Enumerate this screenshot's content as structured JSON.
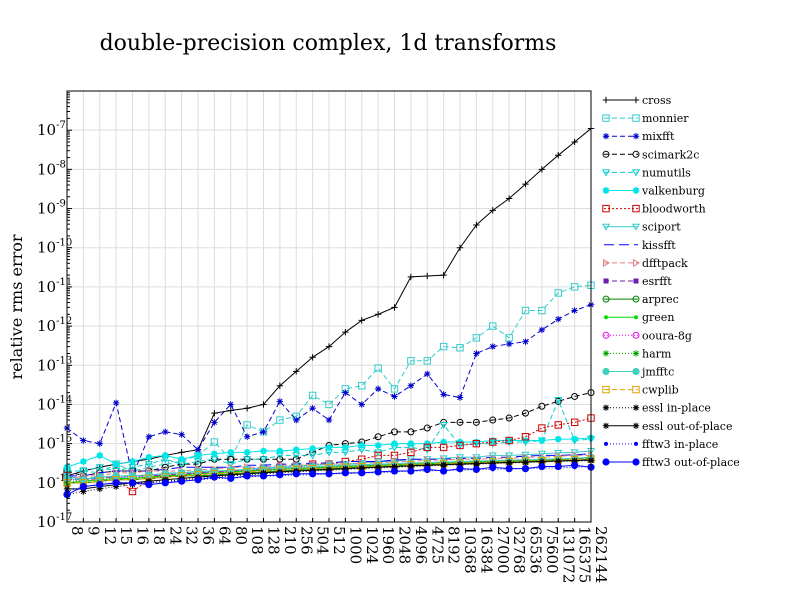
{
  "chart_data": {
    "type": "line",
    "title": "double-precision complex, 1d transforms",
    "ylabel": "relative rms error",
    "yscale": "log",
    "ylim": [
      1e-17,
      1e-06
    ],
    "y_ticks": [
      {
        "value": 1e-17,
        "base": "10",
        "exp": "-17"
      },
      {
        "value": 1e-16,
        "base": "10",
        "exp": "-16"
      },
      {
        "value": 1e-15,
        "base": "10",
        "exp": "-15"
      },
      {
        "value": 1e-14,
        "base": "10",
        "exp": "-14"
      },
      {
        "value": 1e-13,
        "base": "10",
        "exp": "-13"
      },
      {
        "value": 1e-12,
        "base": "10",
        "exp": "-12"
      },
      {
        "value": 1e-11,
        "base": "10",
        "exp": "-11"
      },
      {
        "value": 1e-10,
        "base": "10",
        "exp": "-10"
      },
      {
        "value": 1e-09,
        "base": "10",
        "exp": "-9"
      },
      {
        "value": 1e-08,
        "base": "10",
        "exp": "-8"
      },
      {
        "value": 1e-07,
        "base": "10",
        "exp": "-7"
      }
    ],
    "categories": [
      "8",
      "9",
      "12",
      "15",
      "16",
      "18",
      "24",
      "32",
      "36",
      "64",
      "80",
      "108",
      "128",
      "210",
      "256",
      "504",
      "512",
      "1000",
      "1024",
      "1960",
      "2048",
      "4096",
      "4725",
      "8192",
      "10368",
      "16384",
      "27000",
      "32768",
      "65536",
      "75600",
      "131072",
      "165375",
      "262144"
    ],
    "grid": true,
    "legend_position": "right",
    "series": [
      {
        "name": "cross",
        "color": "#000000",
        "dash": "",
        "marker": "plus",
        "values": [
          1.5e-16,
          2e-16,
          2.5e-16,
          3e-16,
          3.5e-16,
          4e-16,
          5e-16,
          6e-16,
          7e-16,
          6e-15,
          7e-15,
          8e-15,
          1e-14,
          3e-14,
          7e-14,
          1.6e-13,
          3e-13,
          7e-13,
          1.4e-12,
          2e-12,
          3e-12,
          1.8e-11,
          1.9e-11,
          2e-11,
          1e-10,
          3.8e-10,
          9e-10,
          1.8e-09,
          4.2e-09,
          1e-08,
          2.3e-08,
          5e-08,
          1.1e-07
        ]
      },
      {
        "name": "monnier",
        "color": "#33cccc",
        "dash": "5,3",
        "marker": "square",
        "values": [
          2e-16,
          2e-16,
          1.8e-16,
          3e-16,
          2e-16,
          2.5e-16,
          3e-16,
          3.5e-16,
          5e-16,
          1.1e-15,
          4e-16,
          3e-15,
          2e-15,
          4e-15,
          5e-15,
          1.7e-14,
          1e-14,
          2.5e-14,
          3e-14,
          8.5e-14,
          2.5e-14,
          1.3e-13,
          1.3e-13,
          3e-13,
          2.8e-13,
          5e-13,
          1e-12,
          5e-13,
          2.5e-12,
          2.5e-12,
          7e-12,
          1e-11,
          1.1e-11
        ]
      },
      {
        "name": "mixfft",
        "color": "#0000cc",
        "dash": "5,3",
        "marker": "asterisk",
        "values": [
          2.5e-15,
          1.2e-15,
          1e-15,
          1.1e-14,
          1.5e-16,
          1.5e-15,
          2e-15,
          1.7e-15,
          7e-16,
          3.5e-15,
          1e-14,
          1.5e-15,
          2e-15,
          1.2e-14,
          4e-15,
          8e-15,
          4e-15,
          2e-14,
          1e-14,
          2.5e-14,
          1.6e-14,
          3e-14,
          6e-14,
          1.8e-14,
          1.5e-14,
          2e-13,
          3e-13,
          3.5e-13,
          4e-13,
          8e-13,
          1.5e-12,
          2.5e-12,
          3.5e-12
        ]
      },
      {
        "name": "scimark2c",
        "color": "#000000",
        "dash": "5,3",
        "marker": "circle",
        "values": [
          2e-16,
          1.5e-16,
          1.8e-16,
          2e-16,
          2e-16,
          2e-16,
          2.5e-16,
          3e-16,
          3e-16,
          4e-16,
          4e-16,
          4e-16,
          4e-16,
          4e-16,
          4e-16,
          6e-16,
          9e-16,
          1e-15,
          1.1e-15,
          1.5e-15,
          2e-15,
          2e-15,
          2.5e-15,
          3.5e-15,
          3.5e-15,
          3.5e-15,
          4e-15,
          4.5e-15,
          6e-15,
          9e-15,
          1.2e-14,
          1.6e-14,
          2e-14
        ]
      },
      {
        "name": "numutils",
        "color": "#00cccc",
        "dash": "5,3",
        "marker": "tri-down",
        "values": [
          2e-16,
          2e-16,
          2.5e-16,
          2e-16,
          2.5e-16,
          3e-16,
          4e-16,
          3e-16,
          3.5e-16,
          4e-16,
          3e-16,
          4e-16,
          4e-16,
          5e-16,
          5e-16,
          5e-16,
          6e-16,
          6e-16,
          7e-16,
          6e-16,
          8e-16,
          8e-16,
          7e-16,
          3e-15,
          9e-16,
          1e-15,
          1e-15,
          1.1e-15,
          1.1e-15,
          1.2e-15,
          1.3e-14,
          1.2e-15,
          1.3e-15
        ]
      },
      {
        "name": "valkenburg",
        "color": "#00e5e5",
        "dash": "",
        "marker": "star",
        "values": [
          2.5e-16,
          3.5e-16,
          5e-16,
          3e-16,
          3.5e-16,
          4.5e-16,
          5e-16,
          4e-16,
          5e-16,
          5.5e-16,
          6e-16,
          6e-16,
          6.5e-16,
          6.5e-16,
          7e-16,
          7.5e-16,
          8e-16,
          8e-16,
          9e-16,
          9e-16,
          1e-15,
          1e-15,
          1e-15,
          1.1e-15,
          1.1e-15,
          1.1e-15,
          1.2e-15,
          1.2e-15,
          1.2e-15,
          1.2e-15,
          1.3e-15,
          1.3e-15,
          1.4e-15
        ]
      },
      {
        "name": "bloodworth",
        "color": "#cc0000",
        "dash": "2,2",
        "marker": "square",
        "values": [
          1.5e-16,
          1.2e-16,
          1.5e-16,
          1.3e-16,
          6e-17,
          1.2e-16,
          1.5e-16,
          1.5e-16,
          1.8e-16,
          2e-16,
          2e-16,
          2e-16,
          2.2e-16,
          2.5e-16,
          2.5e-16,
          3e-16,
          3e-16,
          3.5e-16,
          4e-16,
          5e-16,
          5e-16,
          6e-16,
          8e-16,
          8e-16,
          9e-16,
          1e-15,
          1.1e-15,
          1.2e-15,
          1.5e-15,
          2.5e-15,
          3e-15,
          3.5e-15,
          4.5e-15
        ]
      },
      {
        "name": "sciport",
        "color": "#33cccc",
        "dash": "",
        "marker": "tri-down",
        "values": [
          1.5e-16,
          1.2e-16,
          1.5e-16,
          1.3e-16,
          1.5e-16,
          1.5e-16,
          1.8e-16,
          1.8e-16,
          2e-16,
          2e-16,
          2e-16,
          2.2e-16,
          2.5e-16,
          2.5e-16,
          2.8e-16,
          2.8e-16,
          3e-16,
          3e-16,
          3.2e-16,
          3.5e-16,
          3.5e-16,
          4e-16,
          4e-16,
          4.2e-16,
          4.5e-16,
          4.5e-16,
          5e-16,
          5e-16,
          5.2e-16,
          5.5e-16,
          5.8e-16,
          6e-16,
          6.5e-16
        ]
      },
      {
        "name": "kissfft",
        "color": "#0000ff",
        "dash": "10,5",
        "marker": "none",
        "values": [
          1.5e-16,
          1.5e-16,
          1.8e-16,
          2e-16,
          2e-16,
          2e-16,
          2.2e-16,
          2.5e-16,
          2.5e-16,
          2.5e-16,
          2.5e-16,
          2.8e-16,
          2.8e-16,
          3e-16,
          3e-16,
          3.2e-16,
          3.2e-16,
          3.5e-16,
          3.5e-16,
          3.5e-16,
          3.8e-16,
          4e-16,
          4e-16,
          4e-16,
          4.2e-16,
          4.2e-16,
          4.5e-16,
          4.5e-16,
          4.8e-16,
          5e-16,
          5e-16,
          5.2e-16,
          5.5e-16
        ]
      },
      {
        "name": "dfftpack",
        "color": "#e08080",
        "dash": "5,3",
        "marker": "tri-right",
        "values": [
          1.2e-16,
          1.5e-16,
          1.5e-16,
          1.8e-16,
          1.8e-16,
          2e-16,
          2e-16,
          2e-16,
          2.2e-16,
          2.2e-16,
          2.5e-16,
          2.5e-16,
          2.5e-16,
          2.8e-16,
          2.8e-16,
          3e-16,
          3e-16,
          3e-16,
          3.2e-16,
          3.2e-16,
          3.5e-16,
          3.5e-16,
          3.8e-16,
          3.8e-16,
          4e-16,
          4e-16,
          4.2e-16,
          4.2e-16,
          4.5e-16,
          4.5e-16,
          4.8e-16,
          5e-16,
          5e-16
        ]
      },
      {
        "name": "esrfft",
        "color": "#6a1fb0",
        "dash": "5,3",
        "marker": "filled-square",
        "values": [
          1.2e-16,
          1.2e-16,
          1.3e-16,
          1.5e-16,
          1.5e-16,
          1.5e-16,
          1.6e-16,
          1.7e-16,
          1.8e-16,
          1.9e-16,
          2e-16,
          2e-16,
          2.1e-16,
          2.2e-16,
          2.3e-16,
          2.4e-16,
          2.5e-16,
          2.6e-16,
          2.7e-16,
          2.8e-16,
          2.9e-16,
          3e-16,
          3.1e-16,
          3.2e-16,
          3.3e-16,
          3.4e-16,
          3.5e-16,
          3.6e-16,
          3.7e-16,
          3.8e-16,
          3.9e-16,
          4e-16,
          4.2e-16
        ]
      },
      {
        "name": "arprec",
        "color": "#008000",
        "dash": "",
        "marker": "circle",
        "values": [
          1e-16,
          1e-16,
          1.1e-16,
          1.2e-16,
          1.2e-16,
          1.3e-16,
          1.4e-16,
          1.5e-16,
          1.5e-16,
          1.6e-16,
          1.7e-16,
          1.8e-16,
          1.9e-16,
          2e-16,
          2.1e-16,
          2.2e-16,
          2.3e-16,
          2.4e-16,
          2.5e-16,
          2.6e-16,
          2.7e-16,
          2.8e-16,
          2.9e-16,
          3e-16,
          3.1e-16,
          3.2e-16,
          3.3e-16,
          3.4e-16,
          3.5e-16,
          3.6e-16,
          3.7e-16,
          3.8e-16,
          4e-16
        ]
      },
      {
        "name": "green",
        "color": "#00dd00",
        "dash": "",
        "marker": "filled-dot",
        "values": [
          1e-16,
          1.1e-16,
          1.2e-16,
          1.3e-16,
          1.3e-16,
          1.4e-16,
          1.5e-16,
          1.6e-16,
          1.7e-16,
          1.8e-16,
          1.9e-16,
          2e-16,
          2.1e-16,
          2.2e-16,
          2.3e-16,
          2.4e-16,
          2.5e-16,
          2.6e-16,
          2.7e-16,
          2.8e-16,
          2.9e-16,
          3e-16,
          3.1e-16,
          3.2e-16,
          3.3e-16,
          3.4e-16,
          3.5e-16,
          3.6e-16,
          3.7e-16,
          3.8e-16,
          4e-16,
          4.2e-16,
          4.5e-16
        ]
      },
      {
        "name": "ooura-8g",
        "color": "#ee00ee",
        "dash": "1,2",
        "marker": "circle",
        "values": [
          1.2e-16,
          1.2e-16,
          1.3e-16,
          1.4e-16,
          1.4e-16,
          1.5e-16,
          1.6e-16,
          1.7e-16,
          1.8e-16,
          1.9e-16,
          2e-16,
          2.1e-16,
          2.2e-16,
          2.3e-16,
          2.4e-16,
          2.5e-16,
          2.6e-16,
          2.7e-16,
          2.8e-16,
          2.9e-16,
          3e-16,
          3.1e-16,
          3.2e-16,
          3.3e-16,
          3.4e-16,
          3.5e-16,
          3.6e-16,
          3.7e-16,
          3.8e-16,
          3.9e-16,
          4e-16,
          4.1e-16,
          4.3e-16
        ]
      },
      {
        "name": "harm",
        "color": "#00aa00",
        "dash": "1,2",
        "marker": "asterisk",
        "values": [
          1.1e-16,
          1.1e-16,
          1.2e-16,
          1.3e-16,
          1.3e-16,
          1.4e-16,
          1.5e-16,
          1.6e-16,
          1.7e-16,
          1.8e-16,
          1.9e-16,
          2e-16,
          2.1e-16,
          2.2e-16,
          2.3e-16,
          2.4e-16,
          2.5e-16,
          2.6e-16,
          2.7e-16,
          2.8e-16,
          2.9e-16,
          3e-16,
          3.1e-16,
          3.2e-16,
          3.3e-16,
          3.4e-16,
          3.5e-16,
          3.6e-16,
          3.7e-16,
          3.8e-16,
          3.9e-16,
          4e-16,
          4.2e-16
        ]
      },
      {
        "name": "jmfftc",
        "color": "#40d0c0",
        "dash": "",
        "marker": "filled-circle",
        "values": [
          1.3e-16,
          1.2e-16,
          1.4e-16,
          1.5e-16,
          1.5e-16,
          1.6e-16,
          1.7e-16,
          1.8e-16,
          1.9e-16,
          2e-16,
          2.1e-16,
          2.2e-16,
          2.3e-16,
          2.4e-16,
          2.5e-16,
          2.6e-16,
          2.7e-16,
          2.8e-16,
          2.9e-16,
          3e-16,
          3.1e-16,
          3.2e-16,
          3.3e-16,
          3.4e-16,
          3.5e-16,
          3.6e-16,
          3.7e-16,
          3.8e-16,
          3.9e-16,
          4e-16,
          4.1e-16,
          4.2e-16,
          4.4e-16
        ]
      },
      {
        "name": "cwplib",
        "color": "#e0a000",
        "dash": "5,3",
        "marker": "square",
        "values": [
          1e-16,
          1e-16,
          1.1e-16,
          1.2e-16,
          1.2e-16,
          1.3e-16,
          1.4e-16,
          1.5e-16,
          1.6e-16,
          1.7e-16,
          1.8e-16,
          1.9e-16,
          2e-16,
          2.1e-16,
          2.2e-16,
          2.3e-16,
          2.4e-16,
          2.5e-16,
          2.6e-16,
          2.7e-16,
          2.8e-16,
          2.9e-16,
          3e-16,
          3.1e-16,
          3.2e-16,
          3.3e-16,
          3.4e-16,
          3.5e-16,
          3.6e-16,
          3.7e-16,
          3.8e-16,
          3.9e-16,
          4e-16
        ]
      },
      {
        "name": "essl in-place",
        "color": "#000000",
        "dash": "1,2",
        "marker": "asterisk",
        "values": [
          5e-17,
          6e-17,
          7e-17,
          8e-17,
          9e-17,
          1e-16,
          1.1e-16,
          1.2e-16,
          1.3e-16,
          1.4e-16,
          1.5e-16,
          1.6e-16,
          1.7e-16,
          1.8e-16,
          1.9e-16,
          2e-16,
          2.1e-16,
          2.2e-16,
          2.3e-16,
          2.4e-16,
          2.5e-16,
          2.6e-16,
          2.7e-16,
          2.8e-16,
          2.9e-16,
          3e-16,
          3.1e-16,
          3.2e-16,
          3.3e-16,
          3.4e-16,
          3.5e-16,
          3.6e-16,
          3.7e-16
        ]
      },
      {
        "name": "essl out-of-place",
        "color": "#000000",
        "dash": "",
        "marker": "asterisk",
        "values": [
          7e-17,
          7e-17,
          8e-17,
          9e-17,
          1e-16,
          1.1e-16,
          1.2e-16,
          1.3e-16,
          1.4e-16,
          1.5e-16,
          1.6e-16,
          1.7e-16,
          1.8e-16,
          1.9e-16,
          2e-16,
          2.1e-16,
          2.2e-16,
          2.3e-16,
          2.4e-16,
          2.5e-16,
          2.6e-16,
          2.7e-16,
          2.8e-16,
          2.9e-16,
          3e-16,
          3.1e-16,
          3.2e-16,
          3.3e-16,
          3.4e-16,
          3.5e-16,
          3.6e-16,
          3.7e-16,
          3.8e-16
        ]
      },
      {
        "name": "fftw3 in-place",
        "color": "#0000ff",
        "dash": "1,2",
        "marker": "filled-dot",
        "values": [
          6e-17,
          8e-17,
          9e-17,
          1e-16,
          1e-16,
          1e-16,
          1.1e-16,
          1.1e-16,
          1.2e-16,
          1.3e-16,
          1.3e-16,
          1.4e-16,
          1.5e-16,
          1.5e-16,
          1.6e-16,
          1.6e-16,
          1.7e-16,
          1.7e-16,
          1.8e-16,
          1.8e-16,
          1.9e-16,
          2e-16,
          2e-16,
          2.1e-16,
          2.1e-16,
          2.2e-16,
          2.2e-16,
          2.3e-16,
          2.3e-16,
          2.4e-16,
          2.4e-16,
          2.5e-16,
          2.6e-16
        ]
      },
      {
        "name": "fftw3 out-of-place",
        "color": "#0000ff",
        "dash": "",
        "marker": "filled-circle",
        "values": [
          5e-17,
          8e-17,
          9e-17,
          1e-16,
          1e-16,
          9e-17,
          1e-16,
          1.1e-16,
          1.2e-16,
          1.4e-16,
          1.3e-16,
          1.5e-16,
          1.5e-16,
          1.6e-16,
          1.7e-16,
          1.7e-16,
          1.7e-16,
          1.8e-16,
          1.8e-16,
          1.9e-16,
          2e-16,
          2e-16,
          2.2e-16,
          2e-16,
          2.3e-16,
          2.2e-16,
          2.5e-16,
          2.3e-16,
          2.3e-16,
          2.6e-16,
          2.6e-16,
          2.8e-16,
          2.5e-16
        ]
      }
    ]
  }
}
